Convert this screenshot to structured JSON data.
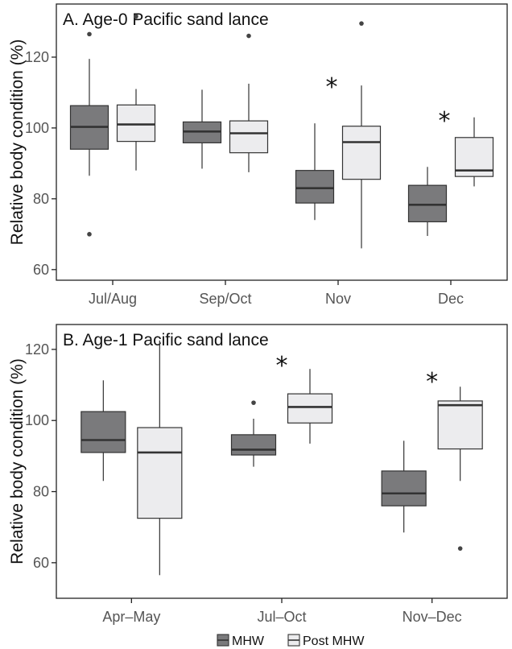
{
  "colors": {
    "mhw": "#7a7a7c",
    "post_mhw": "#ececee",
    "stroke": "#333333",
    "axis": "#222222"
  },
  "legend": {
    "position": "bottom",
    "items": [
      "MHW",
      "Post MHW"
    ]
  },
  "chart_data": [
    {
      "type": "box",
      "title": "A. Age-0 Pacific sand lance",
      "ylabel": "Relative body condition (%)",
      "ylim": [
        57,
        135
      ],
      "yticks": [
        60,
        80,
        100,
        120
      ],
      "categories": [
        "Jul/Aug",
        "Sep/Oct",
        "Nov",
        "Dec"
      ],
      "significant": [
        false,
        false,
        true,
        true
      ],
      "series": [
        {
          "name": "MHW",
          "boxes": [
            {
              "whislo": 86.5,
              "q1": 94,
              "med": 100.3,
              "q3": 106.3,
              "whishi": 119.5,
              "fliers": [
                70,
                126.5
              ]
            },
            {
              "whislo": 88.5,
              "q1": 95.8,
              "med": 99,
              "q3": 101.7,
              "whishi": 110.8,
              "fliers": []
            },
            {
              "whislo": 74,
              "q1": 78.8,
              "med": 83,
              "q3": 88,
              "whishi": 101.3,
              "fliers": []
            },
            {
              "whislo": 69.5,
              "q1": 73.5,
              "med": 78.3,
              "q3": 83.8,
              "whishi": 89,
              "fliers": []
            }
          ]
        },
        {
          "name": "Post MHW",
          "boxes": [
            {
              "whislo": 88,
              "q1": 96.2,
              "med": 101,
              "q3": 106.5,
              "whishi": 111,
              "fliers": [
                131.5
              ]
            },
            {
              "whislo": 87.5,
              "q1": 93,
              "med": 98.5,
              "q3": 102,
              "whishi": 112.5,
              "fliers": [
                126
              ]
            },
            {
              "whislo": 66,
              "q1": 85.5,
              "med": 96,
              "q3": 100.5,
              "whishi": 112,
              "fliers": [
                129.5
              ]
            },
            {
              "whislo": 83.5,
              "q1": 86.3,
              "med": 88,
              "q3": 97.3,
              "whishi": 103,
              "fliers": []
            }
          ]
        }
      ]
    },
    {
      "type": "box",
      "title": "B. Age-1 Pacific sand lance",
      "ylabel": "Relative body condition (%)",
      "ylim": [
        50,
        127
      ],
      "yticks": [
        60,
        80,
        100,
        120
      ],
      "categories": [
        "Apr–May",
        "Jul–Oct",
        "Nov–Dec"
      ],
      "significant": [
        false,
        true,
        true
      ],
      "series": [
        {
          "name": "MHW",
          "boxes": [
            {
              "whislo": 83,
              "q1": 91,
              "med": 94.5,
              "q3": 102.5,
              "whishi": 111.3,
              "fliers": []
            },
            {
              "whislo": 87,
              "q1": 90.3,
              "med": 91.8,
              "q3": 96,
              "whishi": 100.5,
              "fliers": [
                105
              ]
            },
            {
              "whislo": 68.5,
              "q1": 76,
              "med": 79.5,
              "q3": 85.8,
              "whishi": 94.3,
              "fliers": []
            }
          ]
        },
        {
          "name": "Post MHW",
          "boxes": [
            {
              "whislo": 56.5,
              "q1": 72.5,
              "med": 91,
              "q3": 98,
              "whishi": 122.5,
              "fliers": []
            },
            {
              "whislo": 93.5,
              "q1": 99.3,
              "med": 103.8,
              "q3": 107.5,
              "whishi": 114.5,
              "fliers": []
            },
            {
              "whislo": 83,
              "q1": 92,
              "med": 104.3,
              "q3": 105.5,
              "whishi": 109.5,
              "fliers": [
                64
              ]
            }
          ]
        }
      ]
    }
  ]
}
